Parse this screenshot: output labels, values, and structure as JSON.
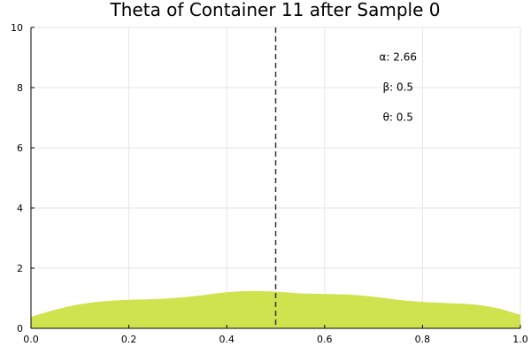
{
  "chart_data": {
    "type": "area",
    "title": "Theta of Container 11 after Sample 0",
    "xlabel": "",
    "ylabel": "",
    "xlim": [
      0,
      1
    ],
    "ylim": [
      0,
      10
    ],
    "grid": true,
    "x_ticks": [
      "0.0",
      "0.2",
      "0.4",
      "0.6",
      "0.8",
      "1.0"
    ],
    "y_ticks": [
      "0",
      "2",
      "4",
      "6",
      "8",
      "10"
    ],
    "series": [
      {
        "color": "#cfe34f",
        "x": [
          0.0,
          0.05,
          0.1,
          0.15,
          0.2,
          0.25,
          0.3,
          0.35,
          0.4,
          0.45,
          0.5,
          0.55,
          0.6,
          0.65,
          0.7,
          0.75,
          0.8,
          0.85,
          0.9,
          0.95,
          1.0
        ],
        "y": [
          0.38,
          0.62,
          0.8,
          0.9,
          0.95,
          0.97,
          1.02,
          1.1,
          1.2,
          1.24,
          1.22,
          1.16,
          1.14,
          1.12,
          1.05,
          0.95,
          0.88,
          0.84,
          0.8,
          0.68,
          0.45
        ]
      }
    ],
    "vline": {
      "x": 0.5,
      "style": "dashed",
      "color": "#333333"
    },
    "annotations": [
      {
        "text": "α: 2.66",
        "x": 0.75,
        "y": 8.9
      },
      {
        "text": "β: 0.5",
        "x": 0.75,
        "y": 7.9
      },
      {
        "text": "θ: 0.5",
        "x": 0.75,
        "y": 6.9
      }
    ]
  }
}
